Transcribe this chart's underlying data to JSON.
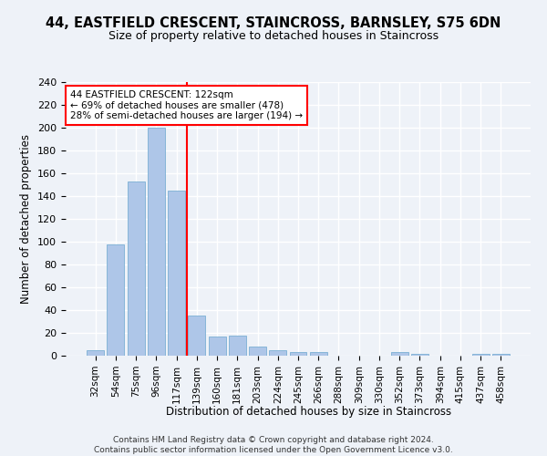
{
  "title": "44, EASTFIELD CRESCENT, STAINCROSS, BARNSLEY, S75 6DN",
  "subtitle": "Size of property relative to detached houses in Staincross",
  "xlabel": "Distribution of detached houses by size in Staincross",
  "ylabel": "Number of detached properties",
  "bar_labels": [
    "32sqm",
    "54sqm",
    "75sqm",
    "96sqm",
    "117sqm",
    "139sqm",
    "160sqm",
    "181sqm",
    "203sqm",
    "224sqm",
    "245sqm",
    "266sqm",
    "288sqm",
    "309sqm",
    "330sqm",
    "352sqm",
    "373sqm",
    "394sqm",
    "415sqm",
    "437sqm",
    "458sqm"
  ],
  "bar_values": [
    5,
    98,
    153,
    200,
    145,
    35,
    17,
    18,
    8,
    5,
    3,
    3,
    0,
    0,
    0,
    3,
    2,
    0,
    0,
    2,
    2
  ],
  "bar_color": "#aec6e8",
  "bar_edgecolor": "#7bafd4",
  "vline_color": "red",
  "vline_x": 4.5,
  "annotation_line1": "44 EASTFIELD CRESCENT: 122sqm",
  "annotation_line2": "← 69% of detached houses are smaller (478)",
  "annotation_line3": "28% of semi-detached houses are larger (194) →",
  "annotation_box_color": "white",
  "annotation_box_edgecolor": "red",
  "ylim": [
    0,
    240
  ],
  "yticks": [
    0,
    20,
    40,
    60,
    80,
    100,
    120,
    140,
    160,
    180,
    200,
    220,
    240
  ],
  "footer": "Contains HM Land Registry data © Crown copyright and database right 2024.\nContains public sector information licensed under the Open Government Licence v3.0.",
  "bg_color": "#eef2f8",
  "grid_color": "white"
}
